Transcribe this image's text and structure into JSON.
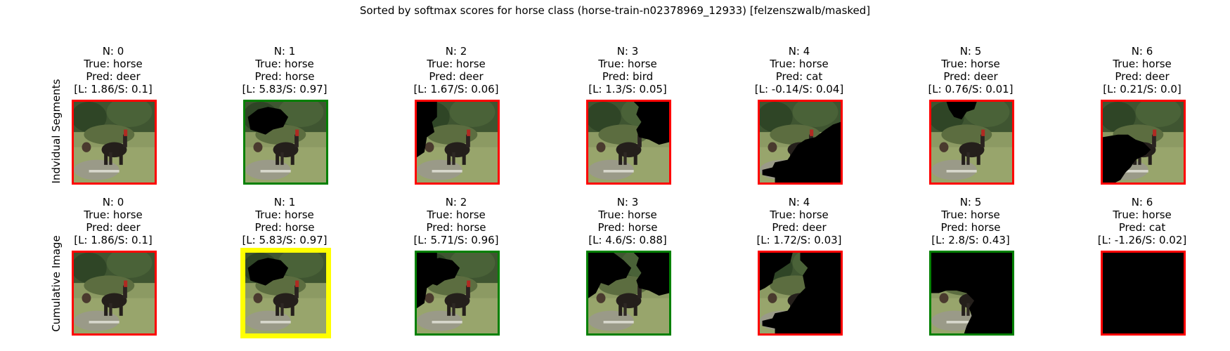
{
  "title": "Sorted by softmax scores for horse class (horse-train-n02378969_12933) [felzenszwalb/masked]",
  "colors": {
    "correct": "#008000",
    "wrong": "#ff0000",
    "best": "#ffff00",
    "mask": "#000000"
  },
  "rows": [
    {
      "label": "Indvidual Segments",
      "cells": [
        {
          "n": "N: 0",
          "true_label": "True: horse",
          "pred": "Pred: deer",
          "score": "[L: 1.86/S: 0.1]",
          "status": "wrong",
          "mask": "none"
        },
        {
          "n": "N: 1",
          "true_label": "True: horse",
          "pred": "Pred: horse",
          "score": "[L: 5.83/S: 0.97]",
          "status": "correct",
          "mask": "hole-top"
        },
        {
          "n": "N: 2",
          "true_label": "True: horse",
          "pred": "Pred: deer",
          "score": "[L: 1.67/S: 0.06]",
          "status": "wrong",
          "mask": "left-strip"
        },
        {
          "n": "N: 3",
          "true_label": "True: horse",
          "pred": "Pred: bird",
          "score": "[L: 1.3/S: 0.05]",
          "status": "wrong",
          "mask": "top-right"
        },
        {
          "n": "N: 4",
          "true_label": "True: horse",
          "pred": "Pred: cat",
          "score": "[L: -0.14/S: 0.04]",
          "status": "wrong",
          "mask": "bottom-right"
        },
        {
          "n": "N: 5",
          "true_label": "True: horse",
          "pred": "Pred: deer",
          "score": "[L: 0.76/S: 0.01]",
          "status": "wrong",
          "mask": "top-patch"
        },
        {
          "n": "N: 6",
          "true_label": "True: horse",
          "pred": "Pred: deer",
          "score": "[L: 0.21/S: 0.0]",
          "status": "wrong",
          "mask": "bottom-left"
        }
      ]
    },
    {
      "label": "Cumulative Image",
      "cells": [
        {
          "n": "N: 0",
          "true_label": "True: horse",
          "pred": "Pred: deer",
          "score": "[L: 1.86/S: 0.1]",
          "status": "wrong",
          "mask": "none"
        },
        {
          "n": "N: 1",
          "true_label": "True: horse",
          "pred": "Pred: horse",
          "score": "[L: 5.83/S: 0.97]",
          "status": "best",
          "mask": "hole-top"
        },
        {
          "n": "N: 2",
          "true_label": "True: horse",
          "pred": "Pred: horse",
          "score": "[L: 5.71/S: 0.96]",
          "status": "correct",
          "mask": "cum-2"
        },
        {
          "n": "N: 3",
          "true_label": "True: horse",
          "pred": "Pred: horse",
          "score": "[L: 4.6/S: 0.88]",
          "status": "correct",
          "mask": "cum-3"
        },
        {
          "n": "N: 4",
          "true_label": "True: horse",
          "pred": "Pred: deer",
          "score": "[L: 1.72/S: 0.03]",
          "status": "wrong",
          "mask": "cum-4"
        },
        {
          "n": "N: 5",
          "true_label": "True: horse",
          "pred": "Pred: horse",
          "score": "[L: 2.8/S: 0.43]",
          "status": "correct",
          "mask": "cum-5"
        },
        {
          "n": "N: 6",
          "true_label": "True: horse",
          "pred": "Pred: cat",
          "score": "[L: -1.26/S: 0.02]",
          "status": "wrong",
          "mask": "full"
        }
      ]
    }
  ]
}
